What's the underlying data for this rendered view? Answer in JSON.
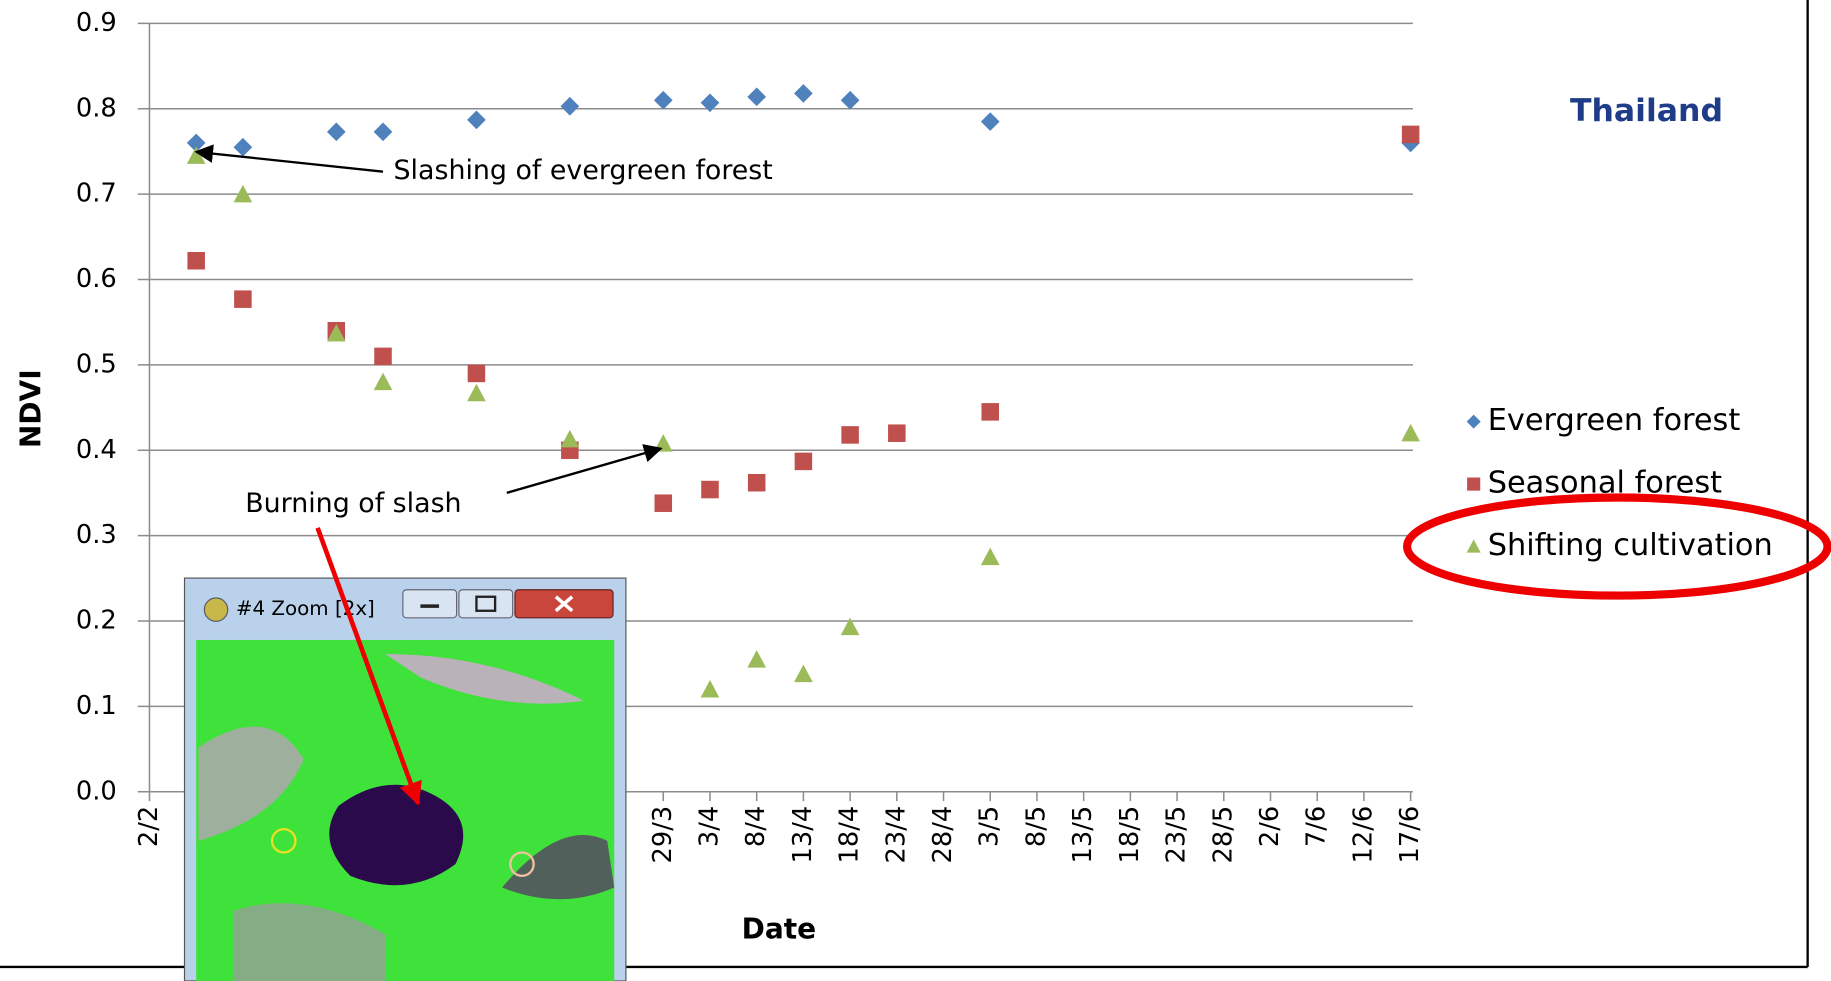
{
  "chart_data": {
    "type": "scatter",
    "y_label": "NDVI",
    "x_label": "Date",
    "annotations": [
      "Thailand",
      "Slashing of evergreen forest",
      "Burning of slash"
    ],
    "categories": [
      "2/2",
      null,
      null,
      null,
      null,
      null,
      null,
      null,
      null,
      null,
      null,
      "29/3",
      "3/4",
      "8/4",
      "13/4",
      "18/4",
      "23/4",
      "28/4",
      "3/5",
      "8/5",
      "13/5",
      "18/5",
      "23/5",
      "28/5",
      "2/6",
      "7/6",
      "12/6",
      "17/6"
    ],
    "series": [
      {
        "name": "Evergreen forest",
        "color": "#4f81bd",
        "marker": "diamond",
        "values": [
          null,
          0.76,
          0.755,
          null,
          0.773,
          0.773,
          null,
          0.787,
          null,
          0.803,
          null,
          0.81,
          0.807,
          0.814,
          0.818,
          0.81,
          null,
          null,
          0.785,
          null,
          null,
          null,
          null,
          null,
          null,
          null,
          null,
          0.76
        ]
      },
      {
        "name": "Seasonal forest",
        "color": "#c0504d",
        "marker": "square",
        "values": [
          null,
          0.622,
          0.577,
          null,
          0.54,
          0.51,
          null,
          0.49,
          null,
          0.4,
          null,
          0.338,
          0.354,
          0.362,
          0.387,
          0.418,
          0.42,
          null,
          0.445,
          null,
          null,
          null,
          null,
          null,
          null,
          null,
          null,
          0.77
        ]
      },
      {
        "name": "Shifting cultivation",
        "color": "#9bbb59",
        "marker": "triangle",
        "values": [
          null,
          0.745,
          0.7,
          null,
          0.537,
          0.48,
          null,
          0.467,
          null,
          0.413,
          null,
          0.408,
          0.12,
          0.155,
          0.138,
          0.193,
          null,
          null,
          0.275,
          null,
          null,
          null,
          null,
          null,
          null,
          null,
          null,
          0.42
        ]
      }
    ],
    "ylim": [
      0,
      0.9
    ],
    "yticks": [
      {
        "value": 0,
        "label": "0.0"
      },
      0.1,
      0.2,
      0.3,
      0.4,
      0.5,
      0.6,
      0.7,
      0.8,
      0.9
    ],
    "grid": true,
    "legend": "right"
  },
  "window": {
    "title": "#4 Zoom [2x]"
  }
}
